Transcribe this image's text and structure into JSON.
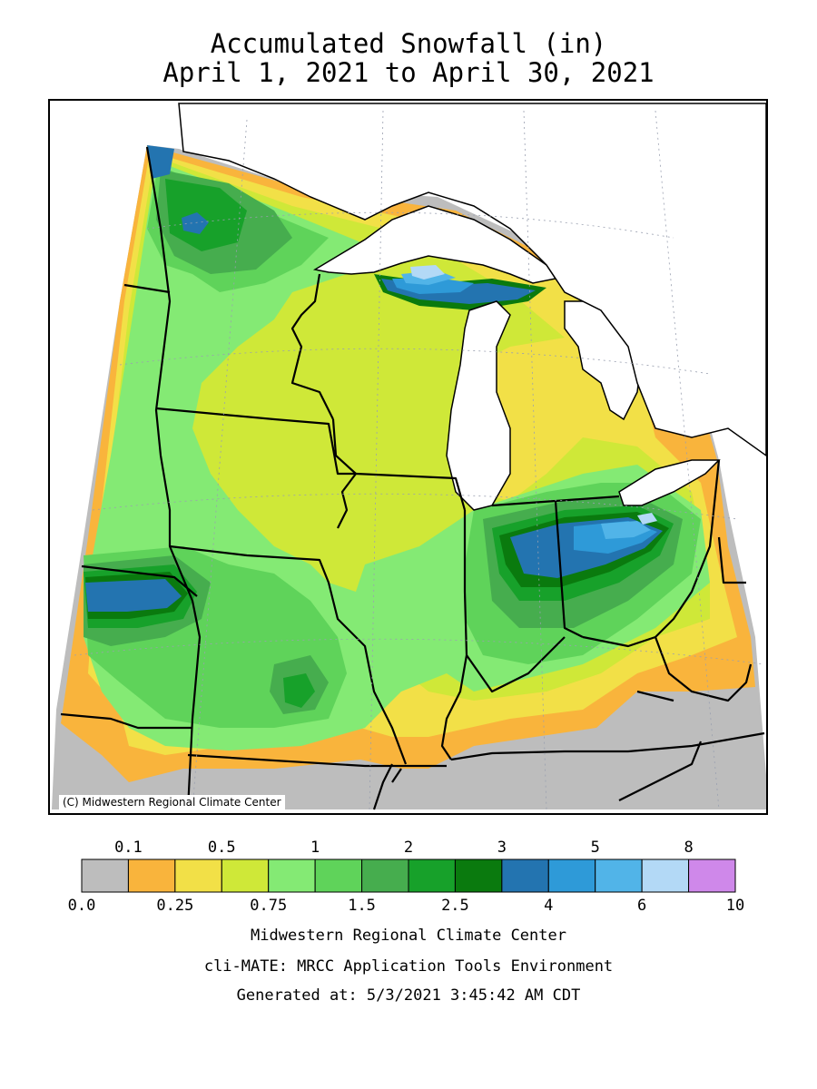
{
  "header": {
    "title_line1": "Accumulated Snowfall (in)",
    "title_line2": "April 1, 2021 to April 30, 2021"
  },
  "map": {
    "credit": "(C) Midwestern Regional Climate Center",
    "fill_colors": {
      "land_none": "#bdbdbd",
      "water": "#ffffff",
      "gray": "#bdbdbd",
      "orange": "#f9b43c",
      "yellow": "#f2e047",
      "yellow_green": "#cfe838",
      "light_green": "#84ea74",
      "green": "#5fd35a",
      "mid_green": "#46ad4e",
      "green_dark": "#17a12a",
      "darkest_green": "#0a7a0e",
      "blue_dark": "#2374b0",
      "blue": "#2e9ad8",
      "blue_light": "#51b4e8",
      "very_light_blue": "#b3d9f6"
    }
  },
  "legend": {
    "upper_labels": [
      "0.1",
      "0.5",
      "1",
      "2",
      "3",
      "5",
      "8"
    ],
    "lower_labels": [
      "0.0",
      "0.25",
      "0.75",
      "1.5",
      "2.5",
      "4",
      "6",
      "10"
    ],
    "colors": [
      "#bdbdbd",
      "#f9b43c",
      "#f2e047",
      "#cfe838",
      "#84ea74",
      "#5fd35a",
      "#46ad4e",
      "#17a12a",
      "#0a7a0e",
      "#2374b0",
      "#2e9ad8",
      "#51b4e8",
      "#b3d9f6",
      "#cf88ea"
    ]
  },
  "footer": {
    "line1": "Midwestern Regional Climate Center",
    "line2": "cli-MATE: MRCC Application Tools Environment",
    "line3": "Generated at: 5/3/2021 3:45:42 AM CDT"
  }
}
